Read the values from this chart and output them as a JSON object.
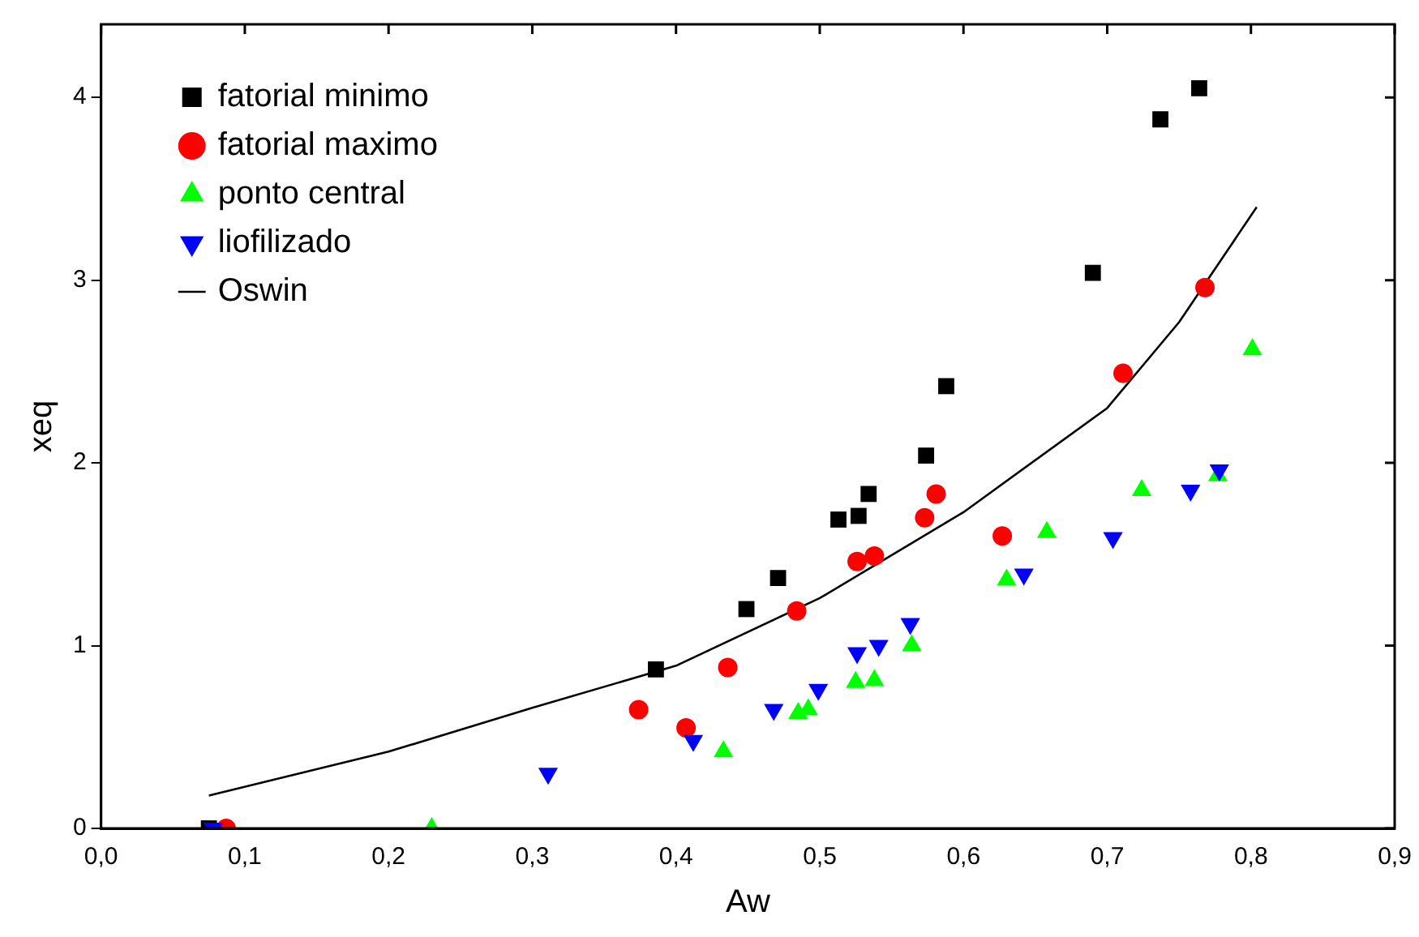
{
  "chart_data": {
    "type": "scatter",
    "xlabel": "Aw",
    "ylabel": "xeq",
    "xlim": [
      0,
      0.9
    ],
    "ylim": [
      0,
      4.4
    ],
    "xticks": [
      {
        "value": 0,
        "label": "0,0"
      },
      {
        "value": 0.1,
        "label": "0,1"
      },
      {
        "value": 0.2,
        "label": "0,2"
      },
      {
        "value": 0.3,
        "label": "0,3"
      },
      {
        "value": 0.4,
        "label": "0,4"
      },
      {
        "value": 0.5,
        "label": "0,5"
      },
      {
        "value": 0.6,
        "label": "0,6"
      },
      {
        "value": 0.7,
        "label": "0,7"
      },
      {
        "value": 0.8,
        "label": "0,8"
      },
      {
        "value": 0.9,
        "label": "0,9"
      }
    ],
    "yticks": [
      0,
      1,
      2,
      3,
      4
    ],
    "grid": false,
    "legend": "top left",
    "series": [
      {
        "name": "fatorial minimo",
        "color": "#000000",
        "marker": "square",
        "x": [
          0.075,
          0.386,
          0.449,
          0.471,
          0.513,
          0.527,
          0.534,
          0.574,
          0.588,
          0.69,
          0.737,
          0.764
        ],
        "values": [
          0,
          0.87,
          1.2,
          1.37,
          1.69,
          1.71,
          1.83,
          2.04,
          2.42,
          3.04,
          3.88,
          4.05
        ]
      },
      {
        "name": "fatorial maximo",
        "color": "#ff0000",
        "marker": "circle",
        "x": [
          0.087,
          0.374,
          0.407,
          0.436,
          0.484,
          0.526,
          0.538,
          0.573,
          0.581,
          0.627,
          0.711,
          0.768
        ],
        "values": [
          0,
          0.65,
          0.55,
          0.88,
          1.19,
          1.46,
          1.49,
          1.7,
          1.83,
          1.6,
          2.49,
          2.96
        ]
      },
      {
        "name": "ponto central",
        "color": "#00ff00",
        "marker": "triangle",
        "x": [
          0.23,
          0.433,
          0.485,
          0.492,
          0.525,
          0.538,
          0.564,
          0.63,
          0.658,
          0.724,
          0.777,
          0.801
        ],
        "values": [
          0,
          0.42,
          0.63,
          0.65,
          0.8,
          0.81,
          1.0,
          1.36,
          1.62,
          1.85,
          1.93,
          2.62
        ]
      },
      {
        "name": "liofilizado",
        "color": "#0000ff",
        "marker": "triangle-down",
        "x": [
          0.078,
          0.311,
          0.412,
          0.468,
          0.499,
          0.526,
          0.541,
          0.563,
          0.642,
          0.704,
          0.758,
          0.778
        ],
        "values": [
          0,
          0.3,
          0.48,
          0.65,
          0.76,
          0.96,
          1.0,
          1.12,
          1.39,
          1.59,
          1.85,
          1.96
        ]
      },
      {
        "name": "Oswin",
        "color": "#000000",
        "type": "line",
        "marker": "none",
        "line_style": "solid",
        "x": [
          0.075,
          0.2,
          0.3,
          0.4,
          0.5,
          0.6,
          0.7,
          0.75,
          0.804
        ],
        "values": [
          0.18,
          0.42,
          0.66,
          0.89,
          1.26,
          1.73,
          2.3,
          2.77,
          3.4
        ]
      }
    ]
  }
}
